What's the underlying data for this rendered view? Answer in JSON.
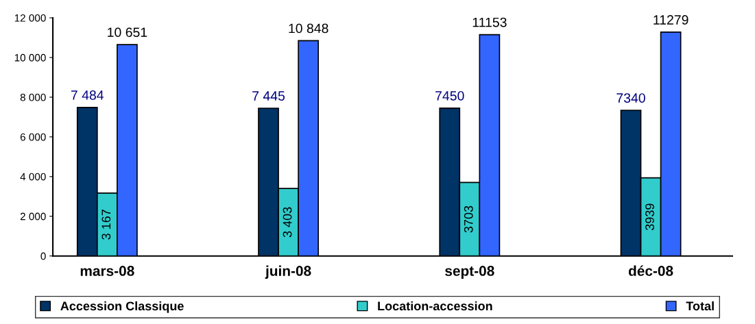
{
  "chart_data": {
    "type": "bar",
    "categories": [
      "mars-08",
      "juin-08",
      "sept-08",
      "déc-08"
    ],
    "series": [
      {
        "name": "Accession Classique",
        "color": "#003366",
        "values": [
          7484,
          7445,
          7450,
          7340
        ],
        "value_labels": [
          "7 484",
          "7 445",
          "7450",
          "7340"
        ]
      },
      {
        "name": "Location-accession",
        "color": "#33cccc",
        "values": [
          3167,
          3403,
          3703,
          3939
        ],
        "value_labels": [
          "3 167",
          "3 403",
          "3703",
          "3939"
        ]
      },
      {
        "name": "Total",
        "color": "#3366ff",
        "values": [
          10651,
          10848,
          11153,
          11279
        ],
        "value_labels": [
          "10 651",
          "10 848",
          "11153",
          "11279"
        ]
      }
    ],
    "ylim": [
      0,
      12000
    ],
    "yticks": [
      {
        "value": 0,
        "label": "0"
      },
      {
        "value": 2000,
        "label": "2 000"
      },
      {
        "value": 4000,
        "label": "4 000"
      },
      {
        "value": 6000,
        "label": "6 000"
      },
      {
        "value": 8000,
        "label": "8 000"
      },
      {
        "value": 10000,
        "label": "10 000"
      },
      {
        "value": 12000,
        "label": "12 000"
      }
    ],
    "legend": "bottom",
    "grid": false
  }
}
